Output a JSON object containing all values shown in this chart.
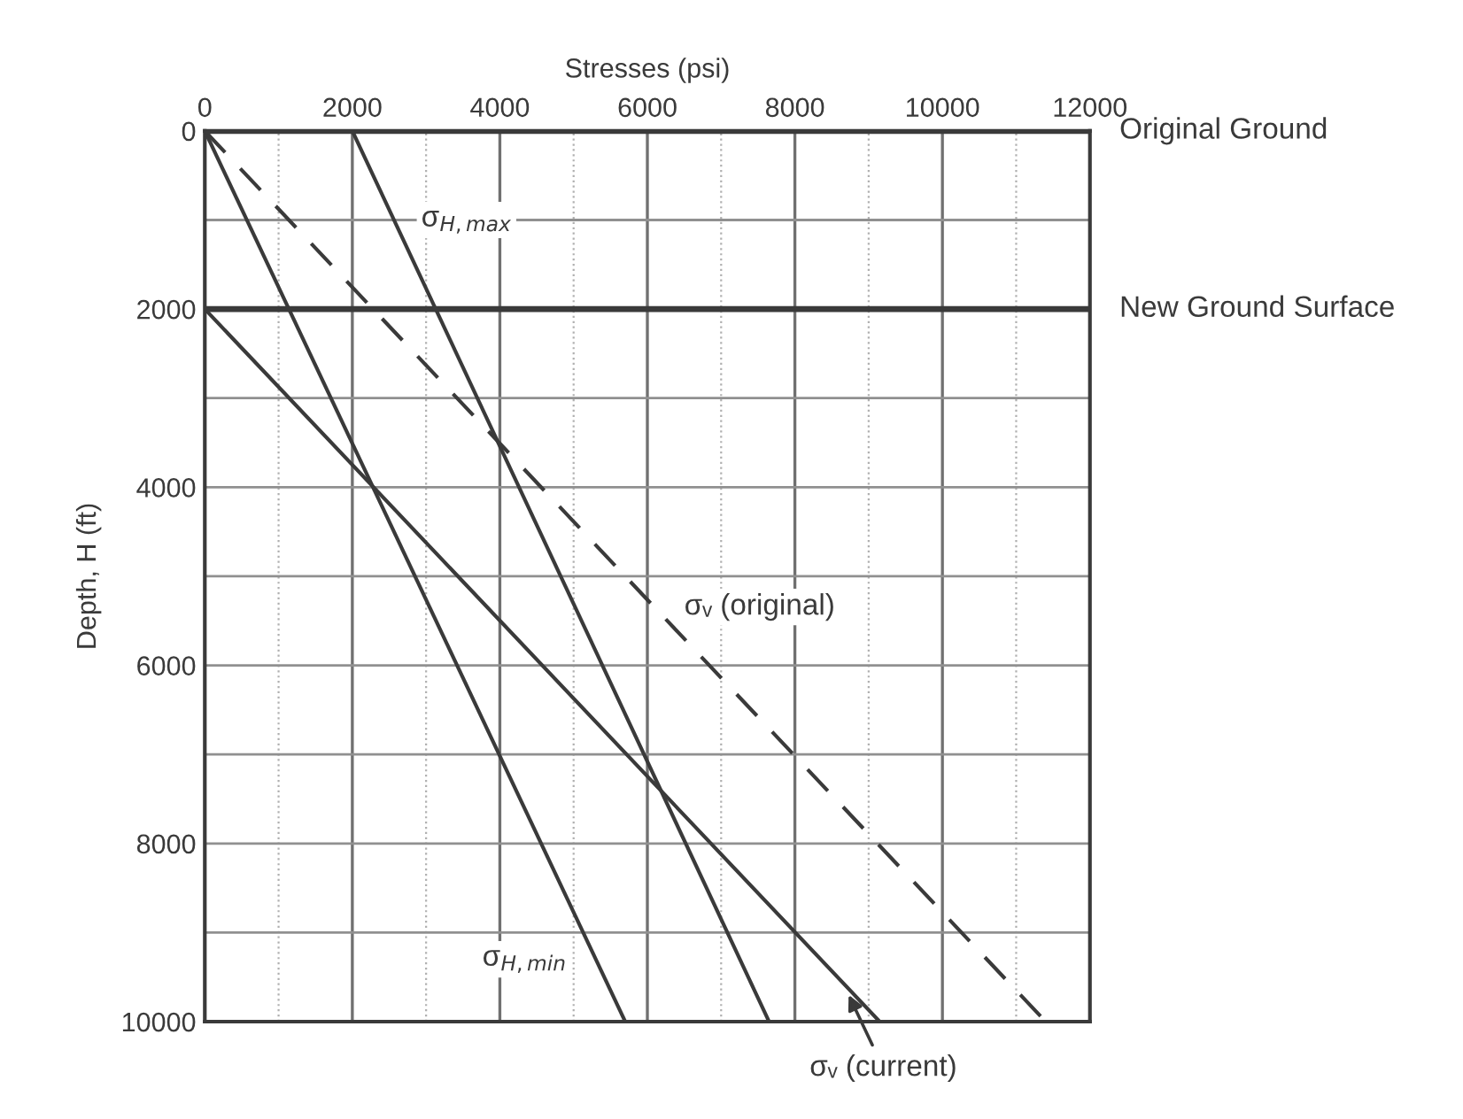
{
  "chart_data": {
    "type": "line",
    "xlabel": "Stresses (psi)",
    "ylabel": "Depth, H (ft)",
    "xlim": [
      0,
      12000
    ],
    "ylim": [
      10000,
      0
    ],
    "xticks": [
      0,
      {
        "value": 1000,
        "label": null
      },
      2000,
      {
        "value": 3000,
        "label": null
      },
      4000,
      {
        "value": 5000,
        "label": null
      },
      6000,
      {
        "value": 7000,
        "label": null
      },
      8000,
      {
        "value": 9000,
        "label": null
      },
      10000,
      {
        "value": 11000,
        "label": null
      },
      12000
    ],
    "yticks": [
      0,
      {
        "value": 1000,
        "label": null
      },
      2000,
      {
        "value": 3000,
        "label": null
      },
      4000,
      {
        "value": 5000,
        "label": null
      },
      6000,
      {
        "value": 7000,
        "label": null
      },
      8000,
      {
        "value": 9000,
        "label": null
      },
      10000
    ],
    "grid": true,
    "marker": "none",
    "series": [
      {
        "color": "#3a3a3a",
        "x": [
          0,
          5700
        ],
        "values": [
          0,
          10000
        ]
      },
      {
        "color": "#3a3a3a",
        "x": [
          2000,
          7650
        ],
        "values": [
          0,
          10000
        ]
      },
      {
        "color": "#3a3a3a",
        "x": [
          0,
          9150
        ],
        "values": [
          2000,
          10000
        ]
      },
      {
        "color": "#3a3a3a",
        "x": [
          0,
          11400
        ],
        "values": [
          0,
          10000
        ],
        "line_style": "dashed"
      }
    ],
    "ref_lines": [
      {
        "axis": "y",
        "value": 0,
        "label": "Original Ground",
        "color": "#3a3a3a"
      },
      {
        "axis": "y",
        "value": 2000,
        "label": "New Ground Surface",
        "color": "#3a3a3a"
      }
    ],
    "annotations": [
      {
        "text": "σ$_{H,max}$",
        "x": 2600,
        "y": 1000
      },
      {
        "text": "σ$_{H,min}$",
        "x": 5240,
        "y": 9300
      },
      {
        "text": "σᵥ (original)",
        "x": 6100,
        "y": 5400
      },
      {
        "text": "σᵥ (current)",
        "x": 8700,
        "y": 9650
      }
    ]
  }
}
